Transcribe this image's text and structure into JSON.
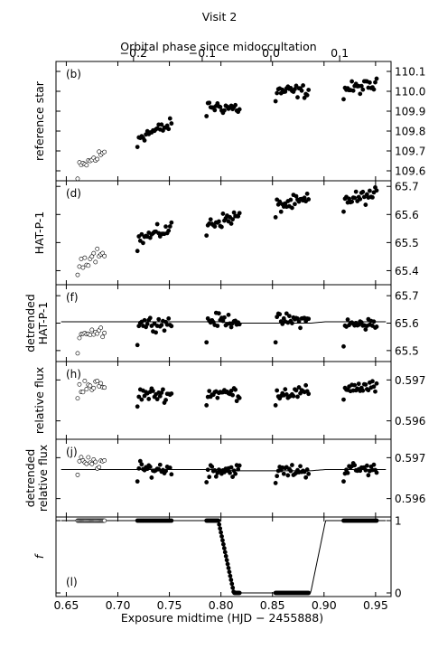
{
  "figure": {
    "title": "Visit 2",
    "top_axis_label": "Orbital phase since midoccultation",
    "top_ticks": [
      {
        "phase": -0.2,
        "label": "−0.2"
      },
      {
        "phase": -0.1,
        "label": "−0.1"
      },
      {
        "phase": 0.0,
        "label": "0.0"
      },
      {
        "phase": 0.1,
        "label": "0.1"
      }
    ],
    "xlabel": "Exposure midtime (HJD − 2455888)"
  },
  "chart_data": {
    "type": "scatter",
    "x_range": [
      0.64,
      0.965
    ],
    "x_ticks": [
      {
        "value": 0.65,
        "label": "0.65"
      },
      {
        "value": 0.7,
        "label": "0.70"
      },
      {
        "value": 0.75,
        "label": "0.75"
      },
      {
        "value": 0.8,
        "label": "0.80"
      },
      {
        "value": 0.85,
        "label": "0.85"
      },
      {
        "value": 0.9,
        "label": "0.90"
      },
      {
        "value": 0.95,
        "label": "0.95"
      }
    ],
    "orbits": [
      {
        "x_start": 0.661,
        "x_end": 0.687,
        "filled": false,
        "n": 16
      },
      {
        "x_start": 0.719,
        "x_end": 0.752,
        "filled": true,
        "n": 25
      },
      {
        "x_start": 0.786,
        "x_end": 0.818,
        "filled": true,
        "n": 25
      },
      {
        "x_start": 0.853,
        "x_end": 0.885,
        "filled": true,
        "n": 25
      },
      {
        "x_start": 0.919,
        "x_end": 0.951,
        "filled": true,
        "n": 25
      }
    ],
    "panels": [
      {
        "label": "(b)",
        "ylabel": [
          "reference star"
        ],
        "ylim": [
          109.55,
          110.15
        ],
        "yticks": [
          {
            "v": 109.6,
            "t": "109.6"
          },
          {
            "v": 109.7,
            "t": "109.7"
          },
          {
            "v": 109.8,
            "t": "109.8"
          },
          {
            "v": 109.9,
            "t": "109.9"
          },
          {
            "v": 110.0,
            "t": "110.0"
          },
          {
            "v": 110.1,
            "t": "110.1"
          }
        ],
        "orbit_levels": [
          109.65,
          109.8,
          109.92,
          110.0,
          110.02
        ],
        "orbit_slopes": [
          0.08,
          0.06,
          -0.01,
          0.0,
          0.02
        ],
        "scatter": 0.016,
        "first_offset": -0.05,
        "fit": null
      },
      {
        "label": "(d)",
        "ylabel": [
          "HAT-P-1"
        ],
        "ylim": [
          65.35,
          65.72
        ],
        "yticks": [
          {
            "v": 65.4,
            "t": "65.4"
          },
          {
            "v": 65.5,
            "t": "65.5"
          },
          {
            "v": 65.6,
            "t": "65.6"
          },
          {
            "v": 65.7,
            "t": "65.7"
          }
        ],
        "orbit_levels": [
          65.45,
          65.53,
          65.58,
          65.64,
          65.66
        ],
        "orbit_slopes": [
          0.05,
          0.04,
          0.03,
          0.02,
          0.02
        ],
        "scatter": 0.012,
        "first_offset": -0.04,
        "fit": null
      },
      {
        "label": "(f)",
        "ylabel": [
          "detrended",
          "HAT-P-1"
        ],
        "ylim": [
          65.46,
          65.74
        ],
        "yticks": [
          {
            "v": 65.5,
            "t": "65.5"
          },
          {
            "v": 65.6,
            "t": "65.6"
          },
          {
            "v": 65.7,
            "t": "65.7"
          }
        ],
        "orbit_levels": [
          65.57,
          65.6,
          65.61,
          65.61,
          65.595
        ],
        "orbit_slopes": [
          0.0,
          0.0,
          0.0,
          0.0,
          0.0
        ],
        "scatter": 0.012,
        "first_offset": -0.08,
        "fit": {
          "out": 65.605,
          "in": 65.6
        }
      },
      {
        "label": "(h)",
        "ylabel": [
          "relative flux"
        ],
        "ylim": [
          0.59555,
          0.59745
        ],
        "yticks": [
          {
            "v": 0.596,
            "t": "0.596"
          },
          {
            "v": 0.597,
            "t": "0.597"
          }
        ],
        "orbit_levels": [
          0.59685,
          0.59665,
          0.59668,
          0.59668,
          0.59682
        ],
        "orbit_slopes": [
          0.0,
          0.0,
          0.0,
          0.0,
          0.0
        ],
        "scatter": 8e-05,
        "first_offset": -0.0003,
        "fit": null
      },
      {
        "label": "(j)",
        "ylabel": [
          "detrended",
          "relative flux"
        ],
        "ylim": [
          0.59555,
          0.59745
        ],
        "yticks": [
          {
            "v": 0.596,
            "t": "0.596"
          },
          {
            "v": 0.597,
            "t": "0.597"
          }
        ],
        "orbit_levels": [
          0.59688,
          0.59672,
          0.5967,
          0.59668,
          0.59672
        ],
        "orbit_slopes": [
          0.0,
          0.0,
          0.0,
          0.0,
          0.0
        ],
        "scatter": 8e-05,
        "first_offset": -0.0003,
        "fit": {
          "out": 0.59671,
          "in": 0.59668
        }
      },
      {
        "label": "(l)",
        "ylabel": [
          "f"
        ],
        "ylim": [
          -0.05,
          1.05
        ],
        "yticks": [
          {
            "v": 0,
            "t": "0"
          },
          {
            "v": 1,
            "t": "1"
          }
        ],
        "model": {
          "ingress_start": 0.7975,
          "ingress_end": 0.8125,
          "egress_start": 0.887,
          "egress_end": 0.9015
        }
      }
    ]
  }
}
